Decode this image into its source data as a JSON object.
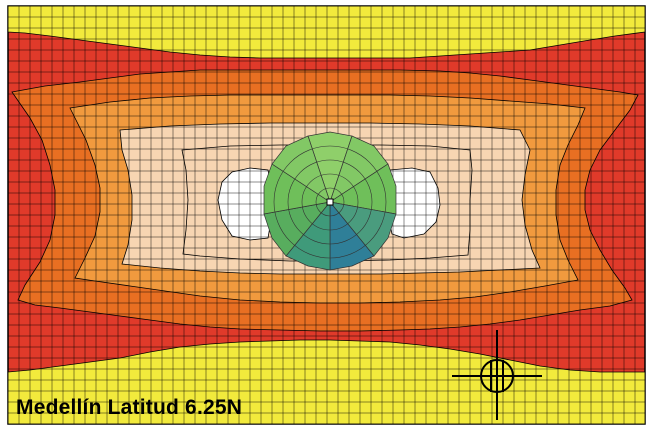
{
  "figure": {
    "caption": "Medellín Latitud 6.25N"
  },
  "legend_colors": {
    "yellow": "#f2ea3c",
    "red": "#e03a2a",
    "dark_orange": "#e86f22",
    "orange": "#f19a3e",
    "peach": "#f7d5b2",
    "white": "#ffffff",
    "grid_line": "#000000"
  },
  "dome_colors": {
    "light_green": "#8fcf6a",
    "green": "#6fbf5a",
    "mid_green": "#58ad5e",
    "teal": "#3f9a7a",
    "blue": "#2f7f98"
  },
  "icons": {
    "north_symbol": "north-arrow-crosshair-icon",
    "center_marker": "center-point-icon"
  }
}
